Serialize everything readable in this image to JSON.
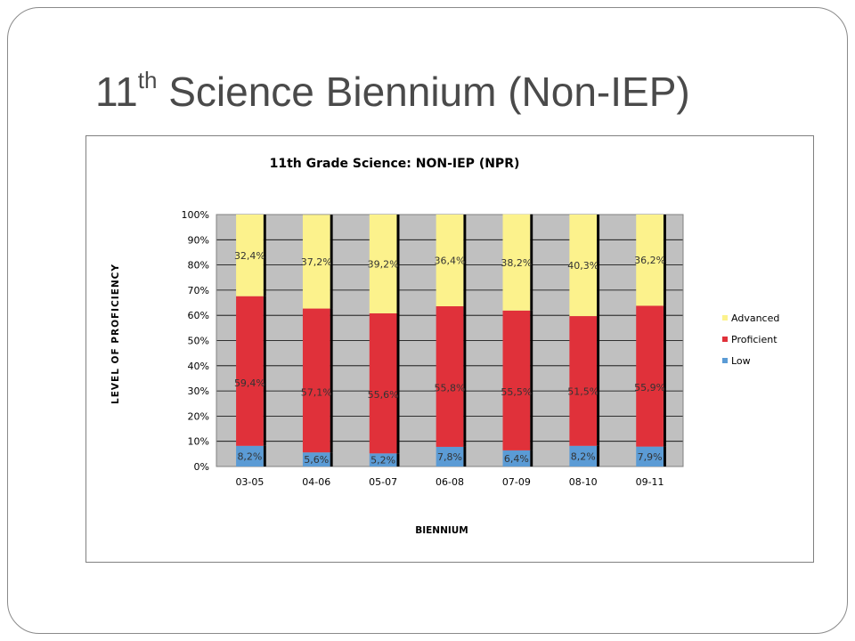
{
  "slide": {
    "title_main": "11",
    "title_sup": "th",
    "title_rest": " Science Biennium (Non-IEP)"
  },
  "colors": {
    "low": "#5b9bd5",
    "proficient": "#e0313a",
    "advanced": "#fcf28c",
    "plot_background": "#c0c0c0"
  },
  "chart_data": {
    "type": "bar",
    "stacked": "percent",
    "title": "11th Grade Science:  NON-IEP (NPR)",
    "xlabel": "BIENNIUM",
    "ylabel": "LEVEL OF PROFICIENCY",
    "ylim": [
      0,
      100
    ],
    "yticks": [
      "0%",
      "10%",
      "20%",
      "30%",
      "40%",
      "50%",
      "60%",
      "70%",
      "80%",
      "90%",
      "100%"
    ],
    "grid": true,
    "legend_position": "right",
    "categories": [
      "03-05",
      "04-06",
      "05-07",
      "06-08",
      "07-09",
      "08-10",
      "09-11"
    ],
    "series": [
      {
        "name": "Low",
        "color": "#5b9bd5",
        "values": [
          8.2,
          5.6,
          5.2,
          7.8,
          6.4,
          8.2,
          7.9
        ],
        "labels": [
          "8,2%",
          "5,6%",
          "5,2%",
          "7,8%",
          "6,4%",
          "8,2%",
          "7,9%"
        ]
      },
      {
        "name": "Proficient",
        "color": "#e0313a",
        "values": [
          59.4,
          57.1,
          55.6,
          55.8,
          55.5,
          51.5,
          55.9
        ],
        "labels": [
          "59,4%",
          "57,1%",
          "55,6%",
          "55,8%",
          "55,5%",
          "51,5%",
          "55,9%"
        ]
      },
      {
        "name": "Advanced",
        "color": "#fcf28c",
        "values": [
          32.4,
          37.2,
          39.2,
          36.4,
          38.2,
          40.3,
          36.2
        ],
        "labels": [
          "32,4%",
          "37,2%",
          "39,2%",
          "36,4%",
          "38,2%",
          "40,3%",
          "36,2%"
        ]
      }
    ],
    "legend_order": [
      "Advanced",
      "Proficient",
      "Low"
    ]
  }
}
